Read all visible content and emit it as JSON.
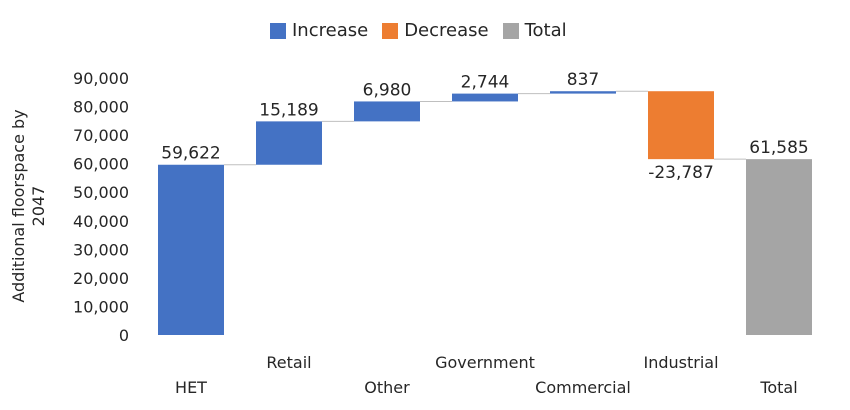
{
  "chart_data": {
    "type": "waterfall",
    "legend": [
      {
        "key": "increase",
        "label": "Increase",
        "color": "#4472C4"
      },
      {
        "key": "decrease",
        "label": "Decrease",
        "color": "#ED7D31"
      },
      {
        "key": "total",
        "label": "Total",
        "color": "#A5A5A5"
      }
    ],
    "ylabel_lines": [
      "Additional floorspace by",
      "2047"
    ],
    "ylim": [
      0,
      90000
    ],
    "yticks": [
      "0",
      "10,000",
      "20,000",
      "30,000",
      "40,000",
      "50,000",
      "60,000",
      "70,000",
      "80,000",
      "90,000"
    ],
    "legend_position": "top-center",
    "grid": false,
    "bars": [
      {
        "category": "HET",
        "value": 59622,
        "label": "59,622",
        "kind": "increase"
      },
      {
        "category": "Retail",
        "value": 15189,
        "label": "15,189",
        "kind": "increase"
      },
      {
        "category": "Other",
        "value": 6980,
        "label": "6,980",
        "kind": "increase"
      },
      {
        "category": "Government",
        "value": 2744,
        "label": "2,744",
        "kind": "increase"
      },
      {
        "category": "Commercial",
        "value": 837,
        "label": "837",
        "kind": "increase"
      },
      {
        "category": "Industrial",
        "value": -23787,
        "label": "-23,787",
        "kind": "decrease"
      },
      {
        "category": "Total",
        "value": 61585,
        "label": "61,585",
        "kind": "total"
      }
    ]
  }
}
